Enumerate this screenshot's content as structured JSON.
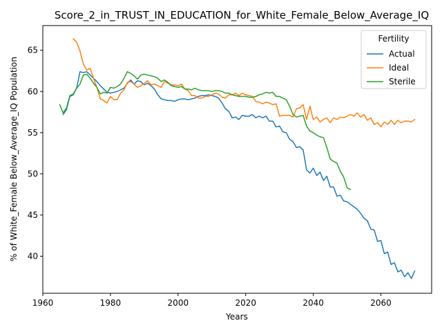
{
  "chart_data": {
    "type": "line",
    "title": "Score_2_in_TRUST_IN_EDUCATION_for_White_Female_Below_Average_IQ",
    "xlabel": "Years",
    "ylabel": "% of White_Female Below_Average_IQ Population",
    "xlim": [
      1960,
      2075
    ],
    "ylim": [
      35.5,
      68.0
    ],
    "xticks": [
      1960,
      1980,
      2000,
      2020,
      2040,
      2060
    ],
    "yticks": [
      40,
      45,
      50,
      55,
      60,
      65
    ],
    "grid": false,
    "legend": {
      "title": "Fertility",
      "placement": "top-right"
    },
    "series": [
      {
        "name": "Actual",
        "color": "#1f77b4",
        "points": [
          [
            1966,
            57.2
          ],
          [
            1967,
            57.8
          ],
          [
            1968,
            59.4
          ],
          [
            1969,
            59.6
          ],
          [
            1970,
            60.4
          ],
          [
            1971,
            62.4
          ],
          [
            1972,
            62.3
          ],
          [
            1973,
            62.4
          ],
          [
            1974,
            62.0
          ],
          [
            1975,
            61.6
          ],
          [
            1976,
            61.2
          ],
          [
            1977,
            60.7
          ],
          [
            1978,
            60.3
          ],
          [
            1979,
            59.9
          ],
          [
            1980,
            59.8
          ],
          [
            1981,
            59.9
          ],
          [
            1982,
            60.0
          ],
          [
            1983,
            60.2
          ],
          [
            1984,
            60.4
          ],
          [
            1985,
            61.0
          ],
          [
            1986,
            61.4
          ],
          [
            1987,
            60.9
          ],
          [
            1988,
            61.3
          ],
          [
            1989,
            61.2
          ],
          [
            1990,
            60.8
          ],
          [
            1991,
            61.0
          ],
          [
            1992,
            60.7
          ],
          [
            1993,
            60.3
          ],
          [
            1994,
            59.6
          ],
          [
            1995,
            59.1
          ],
          [
            1996,
            59.0
          ],
          [
            1997,
            58.9
          ],
          [
            1998,
            58.9
          ],
          [
            1999,
            58.8
          ],
          [
            2000,
            59.0
          ],
          [
            2001,
            59.1
          ],
          [
            2002,
            59.1
          ],
          [
            2003,
            59.0
          ],
          [
            2004,
            59.1
          ],
          [
            2005,
            59.2
          ],
          [
            2006,
            59.4
          ],
          [
            2007,
            59.5
          ],
          [
            2008,
            59.5
          ],
          [
            2009,
            59.6
          ],
          [
            2010,
            59.5
          ],
          [
            2011,
            59.4
          ],
          [
            2012,
            59.2
          ],
          [
            2013,
            58.6
          ],
          [
            2014,
            57.9
          ],
          [
            2015,
            57.6
          ],
          [
            2016,
            56.8
          ],
          [
            2017,
            56.9
          ],
          [
            2018,
            56.6
          ],
          [
            2019,
            57.1
          ],
          [
            2020,
            57.0
          ],
          [
            2021,
            57.0
          ],
          [
            2022,
            57.2
          ],
          [
            2023,
            56.8
          ],
          [
            2024,
            57.0
          ],
          [
            2025,
            56.8
          ],
          [
            2026,
            57.0
          ],
          [
            2027,
            56.4
          ],
          [
            2028,
            56.4
          ],
          [
            2029,
            55.7
          ],
          [
            2030,
            55.8
          ],
          [
            2031,
            55.1
          ],
          [
            2032,
            55.0
          ],
          [
            2033,
            54.2
          ],
          [
            2034,
            53.9
          ],
          [
            2035,
            53.2
          ],
          [
            2036,
            53.3
          ],
          [
            2037,
            52.9
          ],
          [
            2038,
            50.5
          ],
          [
            2039,
            50.1
          ],
          [
            2040,
            50.7
          ],
          [
            2041,
            49.8
          ],
          [
            2042,
            50.2
          ],
          [
            2043,
            49.2
          ],
          [
            2044,
            49.7
          ],
          [
            2045,
            48.4
          ],
          [
            2046,
            48.4
          ],
          [
            2047,
            47.3
          ],
          [
            2048,
            47.4
          ],
          [
            2049,
            46.7
          ],
          [
            2050,
            46.6
          ],
          [
            2051,
            46.3
          ],
          [
            2052,
            46.0
          ],
          [
            2053,
            45.7
          ],
          [
            2054,
            45.2
          ],
          [
            2055,
            44.6
          ],
          [
            2056,
            44.3
          ],
          [
            2057,
            43.3
          ],
          [
            2058,
            43.2
          ],
          [
            2059,
            41.8
          ],
          [
            2060,
            41.9
          ],
          [
            2061,
            40.3
          ],
          [
            2062,
            40.5
          ],
          [
            2063,
            39.0
          ],
          [
            2064,
            39.2
          ],
          [
            2065,
            38.1
          ],
          [
            2066,
            38.3
          ],
          [
            2067,
            37.5
          ],
          [
            2068,
            38.0
          ],
          [
            2069,
            37.3
          ],
          [
            2070,
            38.2
          ]
        ]
      },
      {
        "name": "Ideal",
        "color": "#ff7f0e",
        "points": [
          [
            1969,
            66.4
          ],
          [
            1970,
            66.0
          ],
          [
            1971,
            64.9
          ],
          [
            1972,
            63.3
          ],
          [
            1973,
            62.6
          ],
          [
            1974,
            62.8
          ],
          [
            1975,
            61.6
          ],
          [
            1976,
            60.5
          ],
          [
            1977,
            59.1
          ],
          [
            1978,
            58.9
          ],
          [
            1979,
            58.6
          ],
          [
            1980,
            59.4
          ],
          [
            1981,
            59.0
          ],
          [
            1982,
            59.0
          ],
          [
            1983,
            59.8
          ],
          [
            1984,
            60.2
          ],
          [
            1985,
            61.1
          ],
          [
            1986,
            61.2
          ],
          [
            1987,
            60.9
          ],
          [
            1988,
            60.5
          ],
          [
            1989,
            60.7
          ],
          [
            1990,
            61.0
          ],
          [
            1991,
            61.3
          ],
          [
            1992,
            60.8
          ],
          [
            1993,
            60.9
          ],
          [
            1994,
            60.7
          ],
          [
            1995,
            60.5
          ],
          [
            1996,
            61.2
          ],
          [
            1997,
            61.0
          ],
          [
            1998,
            60.8
          ],
          [
            1999,
            60.8
          ],
          [
            2000,
            60.7
          ],
          [
            2001,
            60.9
          ],
          [
            2002,
            60.3
          ],
          [
            2003,
            60.1
          ],
          [
            2004,
            59.5
          ],
          [
            2005,
            59.5
          ],
          [
            2006,
            59.2
          ],
          [
            2007,
            59.2
          ],
          [
            2008,
            59.4
          ],
          [
            2009,
            59.4
          ],
          [
            2010,
            59.6
          ],
          [
            2011,
            59.8
          ],
          [
            2012,
            59.7
          ],
          [
            2013,
            59.3
          ],
          [
            2014,
            59.2
          ],
          [
            2015,
            59.6
          ],
          [
            2016,
            59.6
          ],
          [
            2017,
            59.8
          ],
          [
            2018,
            59.5
          ],
          [
            2019,
            59.8
          ],
          [
            2020,
            59.6
          ],
          [
            2021,
            59.5
          ],
          [
            2022,
            59.4
          ],
          [
            2023,
            58.8
          ],
          [
            2024,
            58.7
          ],
          [
            2025,
            58.5
          ],
          [
            2026,
            58.7
          ],
          [
            2027,
            58.6
          ],
          [
            2028,
            58.4
          ],
          [
            2029,
            58.5
          ],
          [
            2030,
            57.0
          ],
          [
            2031,
            57.1
          ],
          [
            2032,
            57.1
          ],
          [
            2033,
            57.1
          ],
          [
            2034,
            56.9
          ],
          [
            2035,
            57.9
          ],
          [
            2036,
            58.0
          ],
          [
            2037,
            58.4
          ],
          [
            2038,
            56.6
          ],
          [
            2039,
            58.2
          ],
          [
            2040,
            56.6
          ],
          [
            2041,
            56.9
          ],
          [
            2042,
            56.3
          ],
          [
            2043,
            56.6
          ],
          [
            2044,
            56.8
          ],
          [
            2045,
            56.2
          ],
          [
            2046,
            56.8
          ],
          [
            2047,
            56.6
          ],
          [
            2048,
            56.9
          ],
          [
            2049,
            56.8
          ],
          [
            2050,
            57.0
          ],
          [
            2051,
            57.2
          ],
          [
            2052,
            57.0
          ],
          [
            2053,
            57.4
          ],
          [
            2054,
            56.9
          ],
          [
            2055,
            57.2
          ],
          [
            2056,
            56.5
          ],
          [
            2057,
            56.8
          ],
          [
            2058,
            56.0
          ],
          [
            2059,
            56.2
          ],
          [
            2060,
            55.7
          ],
          [
            2061,
            56.3
          ],
          [
            2062,
            56.0
          ],
          [
            2063,
            56.5
          ],
          [
            2064,
            56.0
          ],
          [
            2065,
            56.5
          ],
          [
            2066,
            56.2
          ],
          [
            2067,
            56.4
          ],
          [
            2068,
            56.4
          ],
          [
            2069,
            56.3
          ],
          [
            2070,
            56.6
          ]
        ]
      },
      {
        "name": "Sterile",
        "color": "#2ca02c",
        "points": [
          [
            1965,
            58.4
          ],
          [
            1966,
            57.4
          ],
          [
            1967,
            58.0
          ],
          [
            1968,
            59.5
          ],
          [
            1969,
            59.7
          ],
          [
            1970,
            60.4
          ],
          [
            1971,
            60.9
          ],
          [
            1972,
            62.0
          ],
          [
            1973,
            62.1
          ],
          [
            1974,
            61.6
          ],
          [
            1975,
            61.0
          ],
          [
            1976,
            60.5
          ],
          [
            1977,
            59.7
          ],
          [
            1978,
            59.9
          ],
          [
            1979,
            59.8
          ],
          [
            1980,
            60.5
          ],
          [
            1981,
            60.4
          ],
          [
            1982,
            60.6
          ],
          [
            1983,
            60.9
          ],
          [
            1984,
            61.6
          ],
          [
            1985,
            62.4
          ],
          [
            1986,
            62.2
          ],
          [
            1987,
            61.9
          ],
          [
            1988,
            61.5
          ],
          [
            1989,
            62.0
          ],
          [
            1990,
            62.1
          ],
          [
            1991,
            62.0
          ],
          [
            1992,
            61.9
          ],
          [
            1993,
            61.8
          ],
          [
            1994,
            61.6
          ],
          [
            1995,
            61.2
          ],
          [
            1996,
            61.4
          ],
          [
            1997,
            61.1
          ],
          [
            1998,
            60.7
          ],
          [
            1999,
            60.6
          ],
          [
            2000,
            60.5
          ],
          [
            2001,
            60.6
          ],
          [
            2002,
            60.3
          ],
          [
            2003,
            60.3
          ],
          [
            2004,
            60.2
          ],
          [
            2005,
            60.4
          ],
          [
            2006,
            60.2
          ],
          [
            2007,
            60.1
          ],
          [
            2008,
            60.1
          ],
          [
            2009,
            60.1
          ],
          [
            2010,
            60.0
          ],
          [
            2011,
            60.1
          ],
          [
            2012,
            60.1
          ],
          [
            2013,
            60.0
          ],
          [
            2014,
            59.8
          ],
          [
            2015,
            59.8
          ],
          [
            2016,
            59.6
          ],
          [
            2017,
            59.5
          ],
          [
            2018,
            59.4
          ],
          [
            2019,
            59.4
          ],
          [
            2020,
            59.4
          ],
          [
            2021,
            59.3
          ],
          [
            2022,
            59.3
          ],
          [
            2023,
            59.4
          ],
          [
            2024,
            59.6
          ],
          [
            2025,
            59.7
          ],
          [
            2026,
            59.9
          ],
          [
            2027,
            59.8
          ],
          [
            2028,
            59.9
          ],
          [
            2029,
            59.4
          ],
          [
            2030,
            59.4
          ],
          [
            2031,
            59.2
          ],
          [
            2032,
            59.0
          ],
          [
            2033,
            58.2
          ],
          [
            2034,
            57.2
          ],
          [
            2035,
            56.9
          ],
          [
            2036,
            57.0
          ],
          [
            2037,
            57.1
          ],
          [
            2038,
            55.8
          ],
          [
            2039,
            55.2
          ],
          [
            2040,
            55.0
          ],
          [
            2041,
            54.7
          ],
          [
            2042,
            54.5
          ],
          [
            2043,
            54.4
          ],
          [
            2044,
            53.2
          ],
          [
            2045,
            51.8
          ],
          [
            2046,
            51.5
          ],
          [
            2047,
            51.3
          ],
          [
            2048,
            50.3
          ],
          [
            2049,
            49.6
          ],
          [
            2050,
            48.3
          ],
          [
            2051,
            48.1
          ]
        ]
      }
    ]
  }
}
